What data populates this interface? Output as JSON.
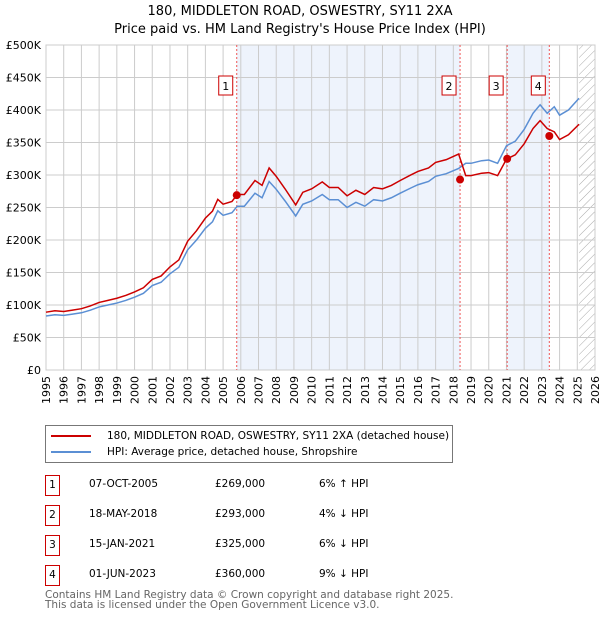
{
  "title": "180, MIDDLETON ROAD, OSWESTRY, SY11 2XA",
  "subtitle": "Price paid vs. HM Land Registry's House Price Index (HPI)",
  "chart_data": {
    "type": "line",
    "xlim": [
      1995,
      2026
    ],
    "ylim": [
      0,
      500000
    ],
    "x_ticks": [
      "1995",
      "1996",
      "1997",
      "1998",
      "1999",
      "2000",
      "2001",
      "2002",
      "2003",
      "2004",
      "2005",
      "2006",
      "2007",
      "2008",
      "2009",
      "2010",
      "2011",
      "2012",
      "2013",
      "2014",
      "2015",
      "2016",
      "2017",
      "2018",
      "2019",
      "2020",
      "2021",
      "2022",
      "2023",
      "2024",
      "2025",
      "2026"
    ],
    "y_ticks": [
      {
        "v": 0,
        "label": "£0"
      },
      {
        "v": 50000,
        "label": "£50K"
      },
      {
        "v": 100000,
        "label": "£100K"
      },
      {
        "v": 150000,
        "label": "£150K"
      },
      {
        "v": 200000,
        "label": "£200K"
      },
      {
        "v": 250000,
        "label": "£250K"
      },
      {
        "v": 300000,
        "label": "£300K"
      },
      {
        "v": 350000,
        "label": "£350K"
      },
      {
        "v": 400000,
        "label": "£400K"
      },
      {
        "v": 450000,
        "label": "£450K"
      },
      {
        "v": 500000,
        "label": "£500K"
      }
    ],
    "hpi_series": {
      "name": "HPI: Average price, detached house, Shropshire",
      "color": "#5b8fd4",
      "x": [
        1995,
        1995.5,
        1996,
        1996.5,
        1997,
        1997.5,
        1998,
        1998.5,
        1999,
        1999.5,
        2000,
        2000.5,
        2001,
        2001.5,
        2002,
        2002.5,
        2003,
        2003.5,
        2004,
        2004.4,
        2004.7,
        2005,
        2005.5,
        2005.8,
        2006.2,
        2006.8,
        2007.2,
        2007.6,
        2008,
        2008.5,
        2009.1,
        2009.5,
        2010,
        2010.6,
        2011,
        2011.5,
        2012,
        2012.5,
        2013,
        2013.5,
        2014,
        2014.5,
        2015,
        2015.6,
        2016,
        2016.6,
        2017,
        2017.6,
        2018.3,
        2018.7,
        2019,
        2019.6,
        2020,
        2020.5,
        2021,
        2021.5,
        2022,
        2022.5,
        2022.9,
        2023.3,
        2023.7,
        2024,
        2024.5,
        2025.1
      ],
      "y": [
        83000,
        85000,
        84000,
        86000,
        88000,
        92000,
        97000,
        100000,
        103000,
        107000,
        112000,
        118000,
        130000,
        135000,
        148000,
        158000,
        185000,
        200000,
        218000,
        228000,
        245000,
        238000,
        242000,
        252000,
        252000,
        272000,
        265000,
        290000,
        278000,
        260000,
        237000,
        255000,
        260000,
        270000,
        262000,
        262000,
        250000,
        258000,
        252000,
        262000,
        260000,
        265000,
        272000,
        280000,
        285000,
        290000,
        298000,
        302000,
        310000,
        318000,
        318000,
        322000,
        323000,
        318000,
        345000,
        352000,
        370000,
        395000,
        408000,
        395000,
        405000,
        392000,
        400000,
        418000
      ]
    },
    "price_series": {
      "name": "180, MIDDLETON ROAD, OSWESTRY, SY11 2XA (detached house)",
      "color": "#cc0000"
    },
    "sales": [
      {
        "n": "1",
        "date": "07-OCT-2005",
        "t": 2005.77,
        "price": 269000,
        "price_label": "£269,000",
        "hpi": "6% ↑ HPI"
      },
      {
        "n": "2",
        "date": "18-MAY-2018",
        "t": 2018.38,
        "price": 293000,
        "price_label": "£293,000",
        "hpi": "4% ↓ HPI"
      },
      {
        "n": "3",
        "date": "15-JAN-2021",
        "t": 2021.04,
        "price": 325000,
        "price_label": "£325,000",
        "hpi": "6% ↓ HPI"
      },
      {
        "n": "4",
        "date": "01-JUN-2023",
        "t": 2023.42,
        "price": 360000,
        "price_label": "£360,000",
        "hpi": "9% ↓ HPI"
      }
    ],
    "future_from": 2025.1
  },
  "legend": {
    "price": "180, MIDDLETON ROAD, OSWESTRY, SY11 2XA (detached house)",
    "hpi": "HPI: Average price, detached house, Shropshire"
  },
  "footer": {
    "line1": "Contains HM Land Registry data © Crown copyright and database right 2025.",
    "line2": "This data is licensed under the Open Government Licence v3.0."
  }
}
